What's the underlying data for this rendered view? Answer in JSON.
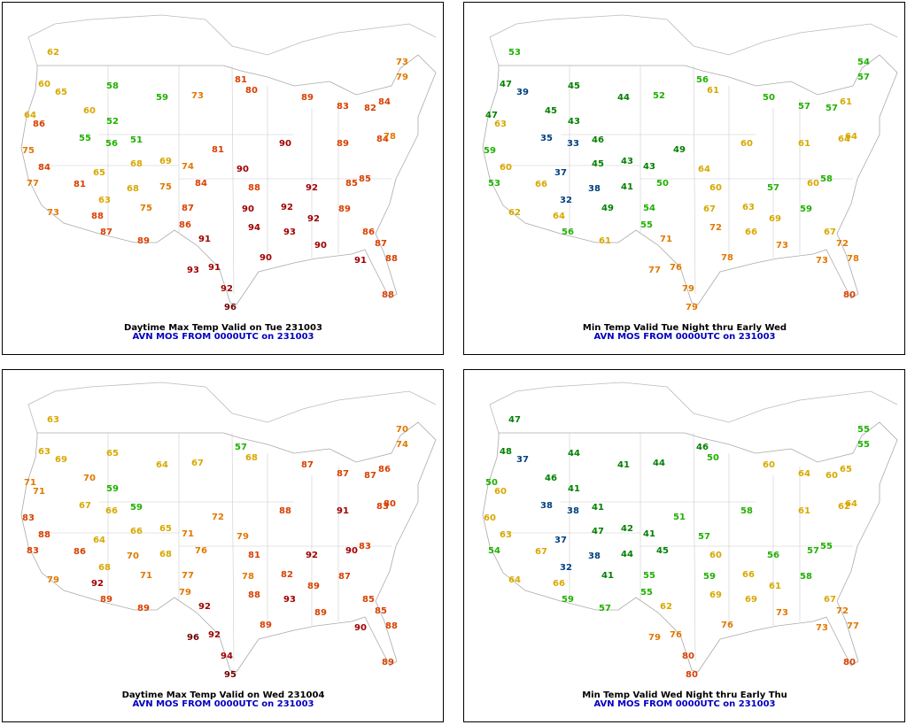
{
  "panels": [
    {
      "title": "Daytime Max Temp Valid on Tue 231003",
      "subtitle": "AVN MOS FROM 0000UTC on 231003",
      "values": [
        62,
        60,
        65,
        64,
        86,
        75,
        84,
        77,
        73,
        81,
        88,
        87,
        60,
        55,
        56,
        65,
        63,
        58,
        52,
        51,
        68,
        68,
        75,
        89,
        69,
        75,
        59,
        73,
        74,
        84,
        87,
        86,
        91,
        93,
        91,
        92,
        81,
        81,
        80,
        90,
        88,
        90,
        94,
        90,
        92,
        93,
        90,
        92,
        92,
        90,
        89,
        83,
        89,
        85,
        89,
        86,
        87,
        88,
        88,
        84,
        85,
        73,
        79,
        84,
        78,
        82,
        91,
        96
      ]
    },
    {
      "title": "Min Temp Valid Tue Night thru Early Wed",
      "subtitle": "AVN MOS FROM 0000UTC on 231003",
      "values": [
        53,
        47,
        39,
        47,
        63,
        59,
        60,
        53,
        62,
        66,
        64,
        56,
        45,
        35,
        33,
        37,
        32,
        45,
        43,
        46,
        45,
        38,
        49,
        61,
        43,
        41,
        44,
        52,
        43,
        50,
        54,
        55,
        71,
        77,
        76,
        79,
        49,
        56,
        61,
        64,
        60,
        67,
        72,
        78,
        63,
        66,
        60,
        57,
        69,
        73,
        50,
        57,
        61,
        60,
        59,
        67,
        72,
        78,
        80,
        64,
        58,
        54,
        57,
        61,
        64,
        57,
        73,
        79
      ]
    },
    {
      "title": "Daytime Max Temp Valid on Wed 231004",
      "subtitle": "AVN MOS FROM 0000UTC on 231003",
      "values": [
        63,
        63,
        69,
        71,
        71,
        83,
        88,
        83,
        79,
        86,
        92,
        89,
        70,
        67,
        66,
        64,
        68,
        65,
        59,
        59,
        66,
        70,
        71,
        89,
        65,
        68,
        64,
        67,
        71,
        76,
        77,
        79,
        92,
        96,
        92,
        94,
        72,
        57,
        68,
        79,
        81,
        78,
        88,
        89,
        82,
        93,
        88,
        92,
        89,
        89,
        87,
        87,
        91,
        90,
        87,
        85,
        85,
        88,
        89,
        83,
        83,
        70,
        74,
        86,
        80,
        87,
        90,
        95
      ]
    },
    {
      "title": "Min Temp Valid Wed Night thru Early Thu",
      "subtitle": "AVN MOS FROM 0000UTC on 231003",
      "values": [
        47,
        48,
        37,
        50,
        60,
        60,
        63,
        54,
        64,
        67,
        66,
        59,
        46,
        38,
        38,
        37,
        32,
        44,
        41,
        41,
        47,
        38,
        41,
        57,
        42,
        44,
        41,
        44,
        41,
        45,
        55,
        55,
        62,
        79,
        76,
        80,
        51,
        46,
        50,
        57,
        60,
        59,
        69,
        76,
        66,
        69,
        58,
        56,
        61,
        73,
        60,
        64,
        61,
        57,
        58,
        67,
        72,
        77,
        80,
        62,
        55,
        55,
        55,
        65,
        64,
        60,
        73,
        80
      ]
    }
  ]
}
